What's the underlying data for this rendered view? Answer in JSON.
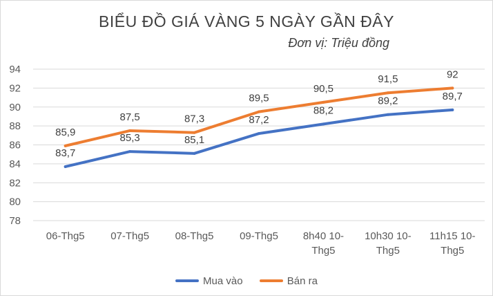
{
  "chart_data": {
    "type": "line",
    "title": "BIỂU ĐỒ GIÁ VÀNG 5 NGÀY GẦN ĐÂY",
    "subtitle": "Đơn vị: Triệu đồng",
    "categories": [
      [
        "06-Thg5"
      ],
      [
        "07-Thg5"
      ],
      [
        "08-Thg5"
      ],
      [
        "09-Thg5"
      ],
      [
        "8h40 10-",
        "Thg5"
      ],
      [
        "10h30 10-",
        "Thg5"
      ],
      [
        "11h15 10-",
        "Thg5"
      ]
    ],
    "series": [
      {
        "name": "Mua vào",
        "color": "#4472c4",
        "values": [
          83.7,
          85.3,
          85.1,
          87.2,
          88.2,
          89.2,
          89.7
        ],
        "labels": [
          "83,7",
          "85,3",
          "85,1",
          "87,2",
          "88,2",
          "89,2",
          "89,7"
        ]
      },
      {
        "name": "Bán ra",
        "color": "#ed7d31",
        "values": [
          85.9,
          87.5,
          87.3,
          89.5,
          90.5,
          91.5,
          92
        ],
        "labels": [
          "85,9",
          "87,5",
          "87,3",
          "89,5",
          "90,5",
          "91,5",
          "92"
        ]
      }
    ],
    "ylim": [
      78,
      94
    ],
    "yticks": [
      78,
      80,
      82,
      84,
      86,
      88,
      90,
      92,
      94
    ],
    "grid": true,
    "gridColor": "#d9d9d9",
    "legend": "bottom"
  }
}
